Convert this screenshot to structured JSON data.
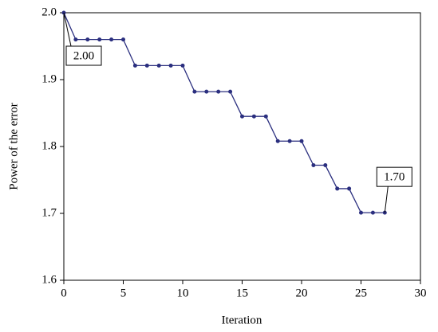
{
  "chart_data": {
    "type": "line",
    "x_label": "Iteration",
    "y_label": "Power of the error",
    "x": [
      0,
      1,
      2,
      3,
      4,
      5,
      6,
      7,
      8,
      9,
      10,
      11,
      12,
      13,
      14,
      15,
      16,
      17,
      18,
      19,
      20,
      21,
      22,
      23,
      24,
      25,
      26,
      27
    ],
    "series": [
      {
        "color": "#2b2f7f",
        "values": [
          2.0,
          1.96,
          1.96,
          1.96,
          1.96,
          1.96,
          1.921,
          1.921,
          1.921,
          1.921,
          1.921,
          1.882,
          1.882,
          1.882,
          1.882,
          1.845,
          1.845,
          1.845,
          1.808,
          1.808,
          1.808,
          1.772,
          1.772,
          1.737,
          1.737,
          1.701,
          1.701,
          1.701
        ],
        "value_labels": [
          "2.00",
          null,
          null,
          null,
          null,
          null,
          null,
          null,
          null,
          null,
          null,
          null,
          null,
          null,
          null,
          null,
          null,
          null,
          null,
          null,
          null,
          null,
          null,
          null,
          null,
          null,
          null,
          "1.70"
        ]
      }
    ],
    "xlim": [
      0,
      30
    ],
    "xticks": [
      0,
      5,
      10,
      15,
      20,
      25,
      30
    ],
    "ylim": [
      1.6,
      2.0
    ],
    "yticks": [
      1.6,
      1.7,
      1.8,
      1.9,
      {
        "value": 2.0,
        "label": "2.0"
      }
    ]
  }
}
